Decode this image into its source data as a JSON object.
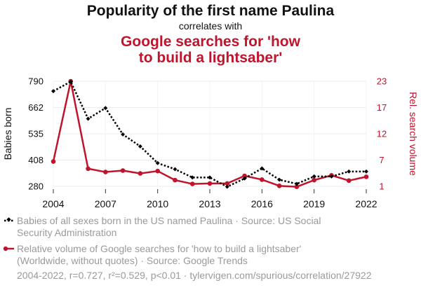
{
  "title": "Popularity of the first name Paulina",
  "subtitle": "correlates with",
  "title2_lines": [
    "Google searches for 'how",
    "to build a lightsaber'"
  ],
  "footer": "2004-2022, r=0.727, r²=0.529, p<0.01 · tylervigen.com/spurious/correlation/27922",
  "legend": [
    {
      "lines": [
        "Babies of all sexes born in the US named Paulina · Source: US Social",
        "Security Administration"
      ],
      "color": "#000000",
      "style": "dotted",
      "marker": "diamond"
    },
    {
      "lines": [
        "Relative volume of Google searches for 'how to build a lightsaber'",
        "(Worldwide, without quotes) · Source: Google Trends"
      ],
      "color": "#c0142c",
      "style": "solid",
      "marker": "circle"
    }
  ],
  "chart_data": {
    "type": "line",
    "x": [
      2004,
      2005,
      2006,
      2007,
      2008,
      2009,
      2010,
      2011,
      2012,
      2013,
      2014,
      2015,
      2016,
      2017,
      2018,
      2019,
      2020,
      2021,
      2022
    ],
    "x_ticks": [
      "2004",
      "2007",
      "2010",
      "2013",
      "2016",
      "2019",
      "2022"
    ],
    "xlim": [
      2004,
      2022
    ],
    "y_left": {
      "label": "Babies born",
      "ticks": [
        "280",
        "408",
        "535",
        "662",
        "790"
      ],
      "lim": [
        280,
        790
      ],
      "color": "#000000"
    },
    "y_right": {
      "label": "Rel. search volume",
      "ticks": [
        "1",
        "7",
        "12",
        "17",
        "23"
      ],
      "lim": [
        1,
        23
      ],
      "color": "#c0142c"
    },
    "grid": true,
    "series": [
      {
        "name": "Babies of all sexes born in the US named Paulina",
        "axis": "left",
        "values": [
          742,
          788,
          608,
          660,
          532,
          474,
          393,
          363,
          323,
          323,
          278,
          318,
          367,
          312,
          292,
          328,
          328,
          352,
          352
        ]
      },
      {
        "name": "Relative volume of Google searches for 'how to build a lightsaber'",
        "axis": "right",
        "values": [
          6.2,
          23.0,
          4.7,
          4.0,
          4.3,
          3.7,
          4.2,
          2.3,
          1.5,
          1.6,
          1.6,
          3.2,
          2.4,
          1.1,
          0.9,
          2.3,
          3.3,
          2.2,
          3.0
        ]
      }
    ]
  }
}
